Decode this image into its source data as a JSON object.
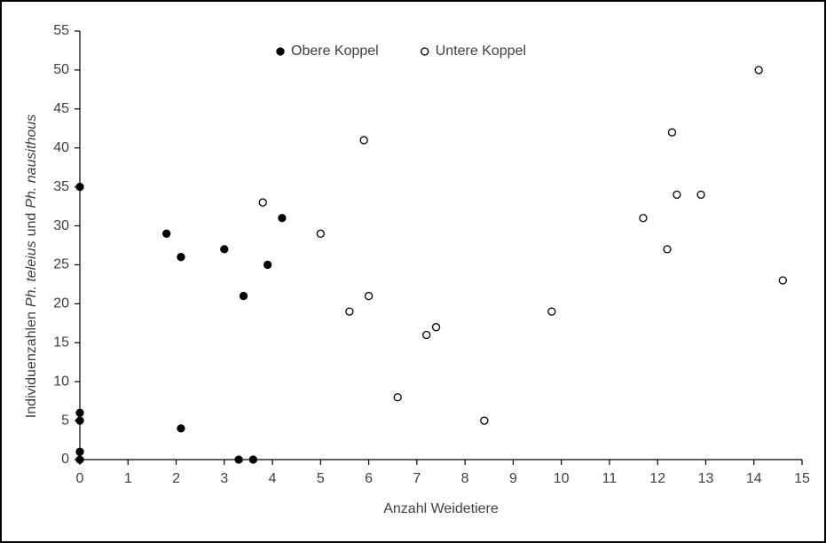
{
  "chart_data": {
    "type": "scatter",
    "xlabel": "Anzahl Weidetiere",
    "ylabel_parts": [
      "Individuenzahlen",
      "Ph. teleius",
      "und",
      "Ph. nausithous"
    ],
    "ylabel_italic": [
      false,
      true,
      false,
      true
    ],
    "xlim": [
      0,
      15
    ],
    "xticks": [
      0,
      1,
      2,
      3,
      4,
      5,
      6,
      7,
      8,
      9,
      10,
      11,
      12,
      13,
      14,
      15
    ],
    "ylim": [
      0,
      55
    ],
    "yticks": [
      0,
      5,
      10,
      15,
      20,
      25,
      30,
      35,
      40,
      45,
      50,
      55
    ],
    "grid": false,
    "legend": "top",
    "series": [
      {
        "name": "Obere Koppel",
        "color": "#000000",
        "marker": "filled",
        "x": [
          0,
          0,
          0,
          0,
          0,
          1.8,
          2.1,
          2.1,
          3,
          3.4,
          3.9,
          4.2,
          3.3,
          3.6
        ],
        "values": [
          35,
          6,
          5,
          1,
          0,
          29,
          26,
          4,
          27,
          21,
          25,
          31,
          0,
          0
        ]
      },
      {
        "name": "Untere Koppel",
        "color": "#000000",
        "marker": "open",
        "x": [
          3.8,
          5,
          5.9,
          6,
          5.6,
          6.6,
          7.2,
          7.4,
          8.4,
          9.8,
          11.7,
          12.2,
          12.3,
          12.4,
          12.9,
          14.1,
          14.6
        ],
        "values": [
          33,
          29,
          41,
          21,
          19,
          8,
          16,
          17,
          5,
          19,
          31,
          27,
          42,
          34,
          34,
          50,
          23
        ]
      }
    ]
  }
}
